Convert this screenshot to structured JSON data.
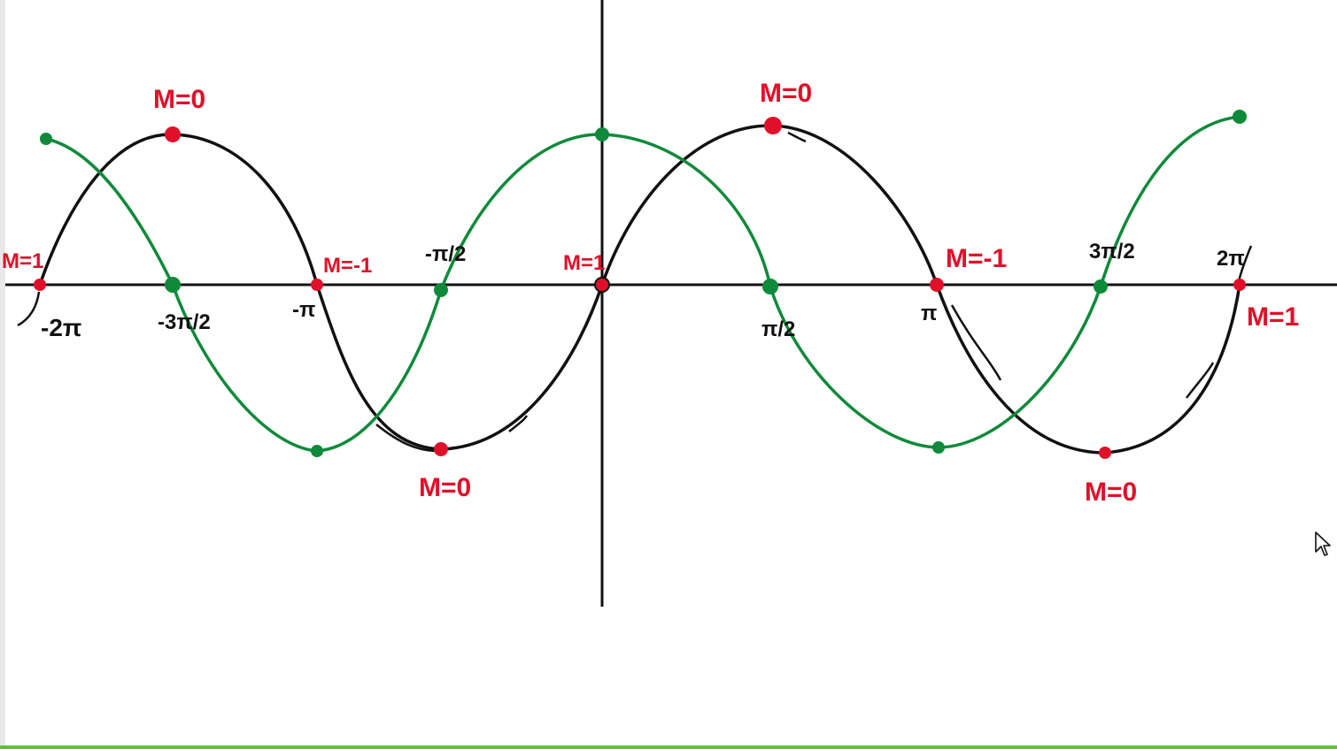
{
  "annotations": {
    "m_left_edge": "M=1",
    "m_left_peak": "M=0",
    "m_neg_pi_left": "M=-1",
    "m_origin": "M=1",
    "m_right_peak": "M=0",
    "m_pi_right": "M=-1",
    "m_left_trough": "M=0",
    "m_right_trough": "M=0",
    "m_two_pi": "M=1"
  },
  "ticks": {
    "neg_two_pi": "-2π",
    "neg_three_pi_over_two": "-3π/2",
    "neg_pi": "-π",
    "neg_pi_over_two": "-π/2",
    "pi_over_two": "π/2",
    "pi": "π",
    "three_pi_over_two": "3π/2",
    "two_pi": "2π"
  },
  "colors": {
    "background": "#ffffff",
    "axis": "#111111",
    "sine_curve": "#111111",
    "cosine_curve": "#0f8a3a",
    "marker_red": "#e0102a",
    "marker_green": "#0f8a3a",
    "bottom_bar": "#5cc42c"
  },
  "icons": {
    "cursor": "mouse-pointer-icon"
  }
}
